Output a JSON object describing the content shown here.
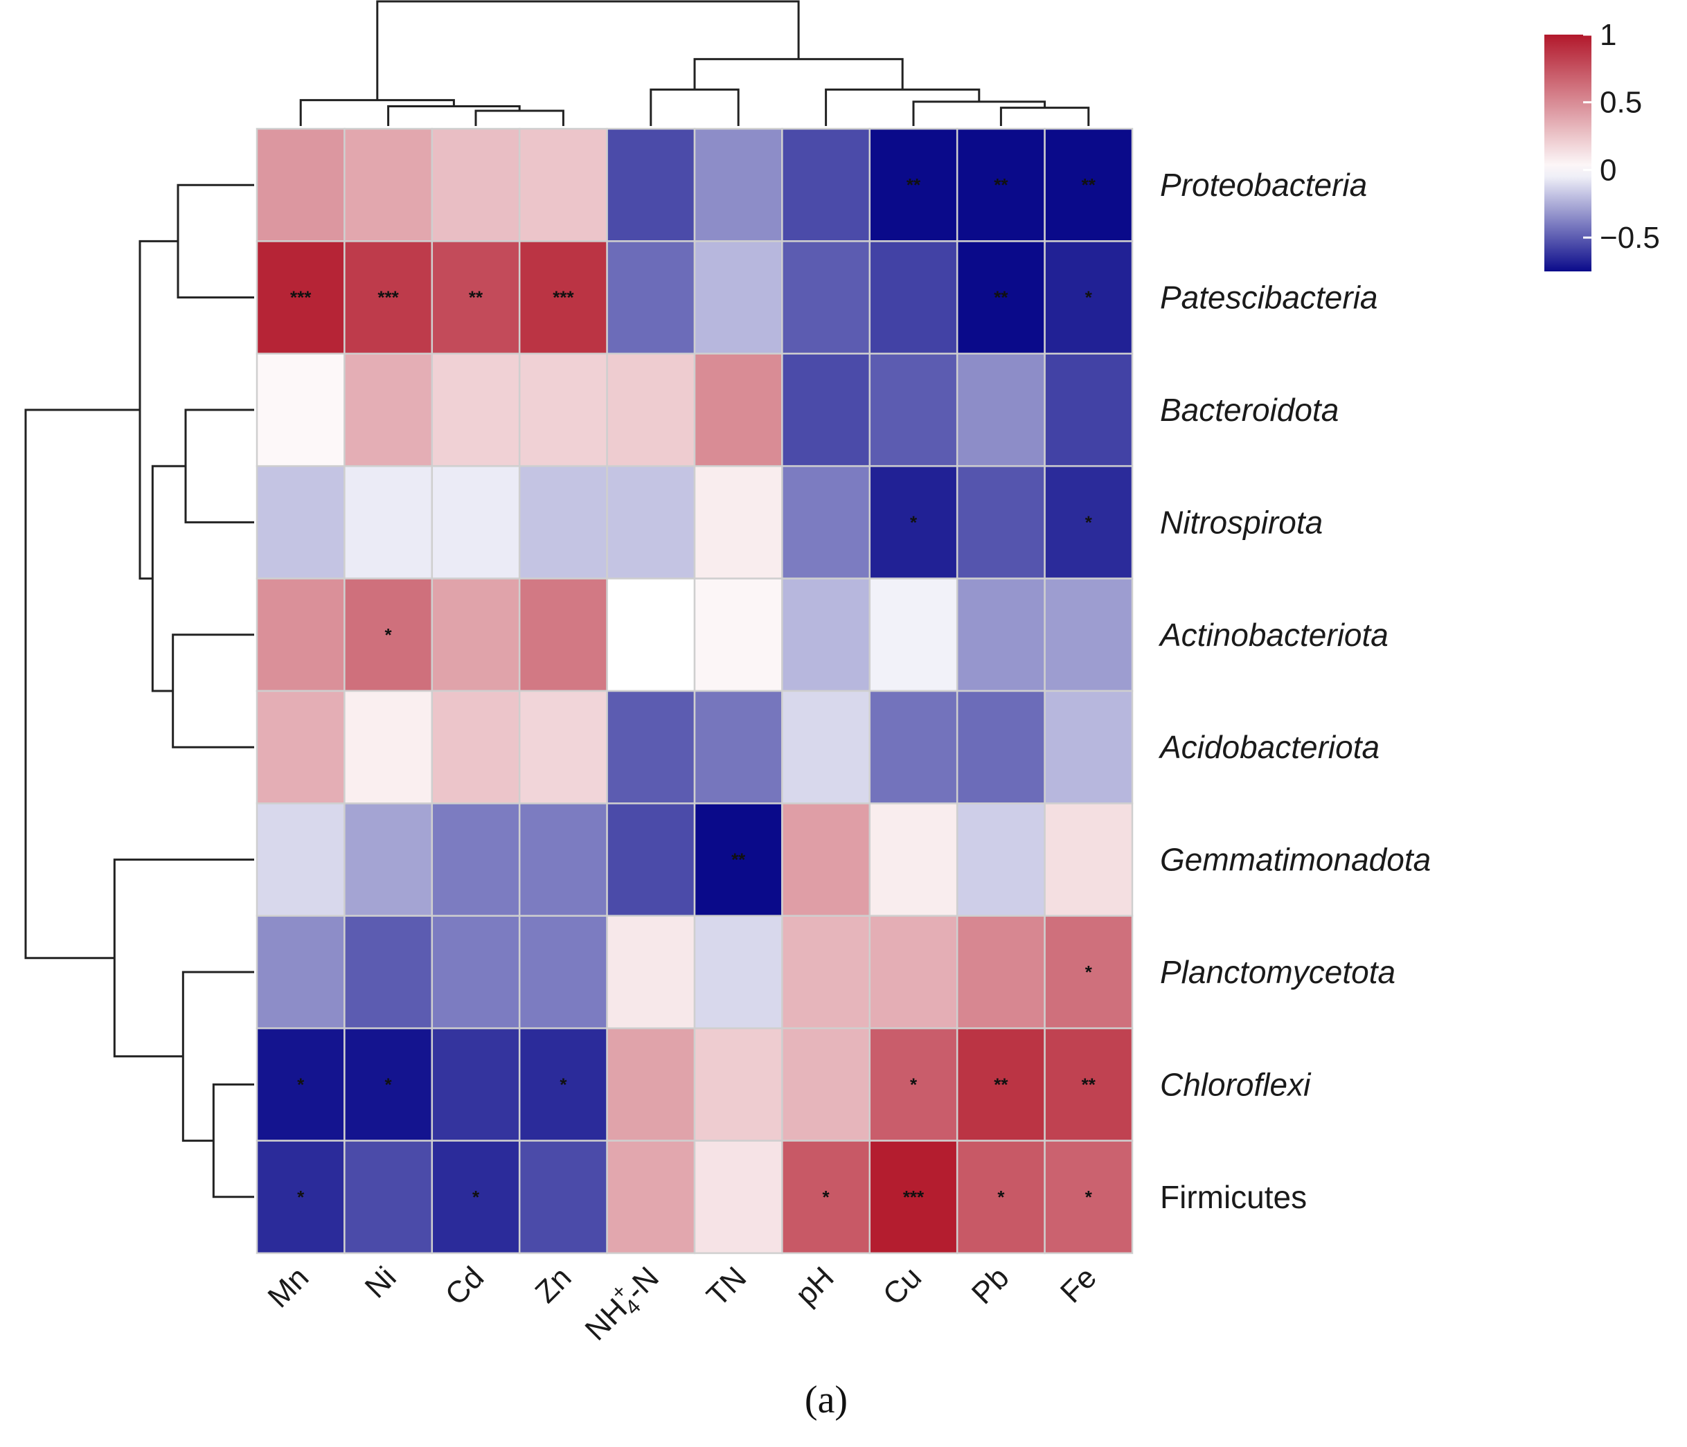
{
  "chart_data": {
    "type": "heatmap",
    "panel_label": "(a)",
    "columns": [
      "Mn",
      "Ni",
      "Cd",
      "Zn",
      "NH4+-N",
      "TN",
      "pH",
      "Cu",
      "Pb",
      "Fe"
    ],
    "rows": [
      {
        "name": "Proteobacteria",
        "italic": true
      },
      {
        "name": "Patescibacteria",
        "italic": true
      },
      {
        "name": "Bacteroidota",
        "italic": true
      },
      {
        "name": "Nitrospirota",
        "italic": true
      },
      {
        "name": "Actinobacteriota",
        "italic": true
      },
      {
        "name": "Acidobacteriota",
        "italic": true
      },
      {
        "name": "Gemmatimonadota",
        "italic": true
      },
      {
        "name": "Planctomycetota",
        "italic": true
      },
      {
        "name": "Chloroflexi",
        "italic": true
      },
      {
        "name": "Firmicutes",
        "italic": false
      }
    ],
    "values": [
      [
        0.45,
        0.38,
        0.28,
        0.25,
        -0.55,
        -0.35,
        -0.55,
        -0.78,
        -0.8,
        -0.78
      ],
      [
        0.95,
        0.85,
        0.78,
        0.88,
        -0.45,
        -0.22,
        -0.5,
        -0.58,
        -0.8,
        -0.68
      ],
      [
        0.03,
        0.35,
        0.2,
        0.2,
        0.22,
        0.5,
        -0.55,
        -0.5,
        -0.35,
        -0.58
      ],
      [
        -0.18,
        -0.06,
        -0.06,
        -0.18,
        -0.18,
        0.08,
        -0.4,
        -0.68,
        -0.52,
        -0.65
      ],
      [
        0.48,
        0.62,
        0.4,
        0.58,
        0.0,
        0.04,
        -0.22,
        -0.04,
        -0.32,
        -0.3
      ],
      [
        0.35,
        0.07,
        0.25,
        0.18,
        -0.5,
        -0.42,
        -0.12,
        -0.43,
        -0.45,
        -0.22
      ],
      [
        -0.12,
        -0.28,
        -0.4,
        -0.4,
        -0.55,
        -0.78,
        0.42,
        0.08,
        -0.15,
        0.14
      ],
      [
        -0.35,
        -0.5,
        -0.4,
        -0.4,
        0.1,
        -0.12,
        0.32,
        0.35,
        0.52,
        0.62
      ],
      [
        -0.72,
        -0.72,
        -0.62,
        -0.65,
        0.4,
        0.22,
        0.32,
        0.7,
        0.88,
        0.82
      ],
      [
        -0.65,
        -0.55,
        -0.65,
        -0.55,
        0.38,
        0.12,
        0.72,
        0.98,
        0.72,
        0.68
      ]
    ],
    "significance": [
      [
        "",
        "",
        "",
        "",
        "",
        "",
        "",
        "**",
        "**",
        "**"
      ],
      [
        "***",
        "***",
        "**",
        "***",
        "",
        "",
        "",
        "",
        "**",
        "*"
      ],
      [
        "",
        "",
        "",
        "",
        "",
        "",
        "",
        "",
        "",
        ""
      ],
      [
        "",
        "",
        "",
        "",
        "",
        "",
        "",
        "*",
        "",
        "*"
      ],
      [
        "",
        "*",
        "",
        "",
        "",
        "",
        "",
        "",
        "",
        ""
      ],
      [
        "",
        "",
        "",
        "",
        "",
        "",
        "",
        "",
        "",
        ""
      ],
      [
        "",
        "",
        "",
        "",
        "",
        "**",
        "",
        "",
        "",
        ""
      ],
      [
        "",
        "",
        "",
        "",
        "",
        "",
        "",
        "",
        "",
        "*"
      ],
      [
        "*",
        "*",
        "",
        "*",
        "",
        "",
        "",
        "*",
        "**",
        "**"
      ],
      [
        "*",
        "",
        "*",
        "",
        "",
        "",
        "*",
        "***",
        "*",
        "*"
      ]
    ],
    "color_scale": {
      "min": -0.75,
      "max": 1,
      "low_color": "#0a0a8a",
      "mid_color": "#ffffff",
      "high_color": "#b2182b",
      "ticks": [
        {
          "value": 1,
          "label": "1"
        },
        {
          "value": 0.5,
          "label": "0.5"
        },
        {
          "value": 0,
          "label": "0"
        },
        {
          "value": -0.5,
          "label": "−0.5"
        }
      ]
    },
    "column_dendrogram": {
      "merges": [
        [
          2,
          3,
          0.1
        ],
        [
          1,
          10,
          0.13
        ],
        [
          0,
          11,
          0.17
        ],
        [
          8,
          9,
          0.12
        ],
        [
          7,
          13,
          0.16
        ],
        [
          6,
          14,
          0.24
        ],
        [
          4,
          5,
          0.24
        ],
        [
          16,
          15,
          0.44
        ],
        [
          12,
          17,
          0.82
        ]
      ]
    },
    "row_dendrogram": {
      "merges": [
        [
          0,
          1,
          0.3
        ],
        [
          4,
          5,
          0.32
        ],
        [
          2,
          3,
          0.27
        ],
        [
          12,
          11,
          0.4
        ],
        [
          10,
          13,
          0.45
        ],
        [
          8,
          9,
          0.16
        ],
        [
          7,
          15,
          0.28
        ],
        [
          6,
          16,
          0.55
        ],
        [
          14,
          17,
          0.9
        ]
      ]
    }
  }
}
